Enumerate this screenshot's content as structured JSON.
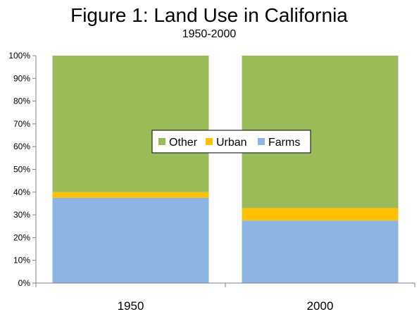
{
  "chart_data": {
    "type": "bar",
    "stacked": "percent",
    "title": "Figure 1: Land Use in California",
    "subtitle": "1950-2000",
    "xlabel": "",
    "ylabel": "",
    "categories": [
      "1950",
      "2000"
    ],
    "series": [
      {
        "name": "Farms",
        "values": [
          37.5,
          27.5
        ],
        "color": "#8EB4E3"
      },
      {
        "name": "Urban",
        "values": [
          2.5,
          5.5
        ],
        "color": "#FFC000"
      },
      {
        "name": "Other",
        "values": [
          60,
          67
        ],
        "color": "#9BBB59"
      }
    ],
    "ylim": [
      0,
      100
    ],
    "yticks": [
      "0%",
      "10%",
      "20%",
      "30%",
      "40%",
      "50%",
      "60%",
      "70%",
      "80%",
      "90%",
      "100%"
    ],
    "grid": false,
    "legend": {
      "placement": "center",
      "order": [
        "Other",
        "Urban",
        "Farms"
      ]
    }
  }
}
